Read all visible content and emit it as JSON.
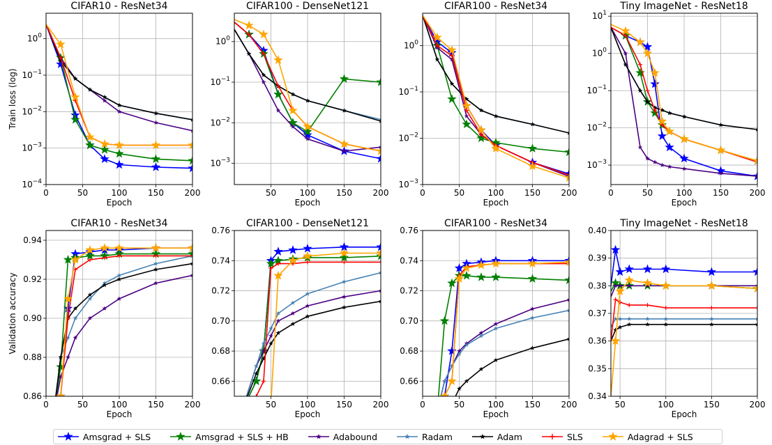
{
  "legend": [
    {
      "name": "Amsgrad + SLS",
      "color": "#0000ff",
      "marker": "star"
    },
    {
      "name": "Amsgrad +  SLS + HB",
      "color": "#008000",
      "marker": "star"
    },
    {
      "name": "Adabound",
      "color": "#4b0082",
      "marker": "star-small"
    },
    {
      "name": "Radam",
      "color": "#4682b4",
      "marker": "star-small"
    },
    {
      "name": "Adam",
      "color": "#000000",
      "marker": "star-small"
    },
    {
      "name": "SLS",
      "color": "#ff0000",
      "marker": "plus"
    },
    {
      "name": "Adagrad + SLS",
      "color": "#ffa500",
      "marker": "star"
    }
  ],
  "chart_data": [
    {
      "type": "line",
      "title": "CIFAR10 - ResNet34",
      "xlabel": "Epoch",
      "ylabel": "Train loss (log)",
      "yscale": "log",
      "xlim": [
        0,
        200
      ],
      "ylim": [
        0.0001,
        5
      ],
      "xticks": [
        "0",
        "50",
        "100",
        "150",
        "200"
      ],
      "yticks": [
        "10^0",
        "10^-1",
        "10^-2",
        "10^-3",
        "10^-4"
      ],
      "grid": true,
      "x": [
        0,
        20,
        40,
        60,
        80,
        100,
        150,
        200
      ],
      "series": [
        {
          "name": "Amsgrad + SLS",
          "values": [
            2.5,
            0.2,
            0.008,
            0.0012,
            0.0005,
            0.00035,
            0.0003,
            0.00028
          ]
        },
        {
          "name": "Amsgrad +  SLS + HB",
          "values": [
            2.5,
            0.3,
            0.006,
            0.0012,
            0.0009,
            0.0007,
            0.0005,
            0.00045
          ]
        },
        {
          "name": "Adabound",
          "values": [
            2.5,
            0.3,
            0.08,
            0.04,
            0.02,
            0.01,
            0.005,
            0.003
          ]
        },
        {
          "name": "Radam",
          "values": [
            2.5,
            0.25,
            0.08,
            0.04,
            0.025,
            0.015,
            0.009,
            0.006
          ]
        },
        {
          "name": "Adam",
          "values": [
            2.5,
            0.25,
            0.08,
            0.04,
            0.025,
            0.015,
            0.009,
            0.006
          ]
        },
        {
          "name": "SLS",
          "values": [
            2.5,
            0.3,
            0.02,
            0.002,
            0.0013,
            0.0012,
            0.0012,
            0.0012
          ]
        },
        {
          "name": "Adagrad + SLS",
          "values": [
            2.5,
            0.7,
            0.025,
            0.002,
            0.0013,
            0.0012,
            0.0012,
            0.0012
          ]
        }
      ]
    },
    {
      "type": "line",
      "title": "CIFAR100 - DenseNet121",
      "xlabel": "Epoch",
      "ylabel": "",
      "yscale": "log",
      "xlim": [
        0,
        200
      ],
      "ylim": [
        0.0003,
        5
      ],
      "xticks": [
        "50",
        "100",
        "150",
        "200"
      ],
      "yticks": [
        "10^0",
        "10^-1",
        "10^-2",
        "10^-3"
      ],
      "grid": true,
      "x": [
        0,
        20,
        40,
        60,
        80,
        100,
        150,
        200
      ],
      "series": [
        {
          "name": "Amsgrad + SLS",
          "values": [
            3,
            1.5,
            0.6,
            0.05,
            0.01,
            0.005,
            0.002,
            0.0013
          ]
        },
        {
          "name": "Amsgrad +  SLS + HB",
          "values": [
            3,
            1.5,
            0.5,
            0.05,
            0.01,
            0.006,
            0.12,
            0.1
          ]
        },
        {
          "name": "Adabound",
          "values": [
            2,
            0.5,
            0.1,
            0.02,
            0.008,
            0.004,
            0.002,
            0.0025
          ]
        },
        {
          "name": "Radam",
          "values": [
            2,
            0.5,
            0.15,
            0.08,
            0.05,
            0.035,
            0.02,
            0.012
          ]
        },
        {
          "name": "Adam",
          "values": [
            2,
            0.5,
            0.15,
            0.08,
            0.05,
            0.035,
            0.02,
            0.011
          ]
        },
        {
          "name": "SLS",
          "values": [
            3,
            1.5,
            0.5,
            0.08,
            0.02,
            0.008,
            0.003,
            0.002
          ]
        },
        {
          "name": "Adagrad + SLS",
          "values": [
            3.5,
            2.5,
            1.5,
            0.35,
            0.02,
            0.008,
            0.003,
            0.002
          ]
        }
      ]
    },
    {
      "type": "line",
      "title": "CIFAR100 - ResNet34",
      "xlabel": "Epoch",
      "ylabel": "",
      "yscale": "log",
      "xlim": [
        0,
        200
      ],
      "ylim": [
        0.001,
        5
      ],
      "xticks": [
        "0",
        "50",
        "100",
        "150",
        "200"
      ],
      "yticks": [
        "10^0",
        "10^-1",
        "10^-2",
        "10^-3"
      ],
      "grid": true,
      "x": [
        0,
        20,
        40,
        60,
        80,
        100,
        150,
        200
      ],
      "series": [
        {
          "name": "Amsgrad + SLS",
          "values": [
            4.5,
            1.2,
            0.7,
            0.05,
            0.015,
            0.007,
            0.003,
            0.0017
          ]
        },
        {
          "name": "Amsgrad +  SLS + HB",
          "values": [
            4.5,
            1,
            0.07,
            0.02,
            0.01,
            0.008,
            0.006,
            0.005
          ]
        },
        {
          "name": "Adabound",
          "values": [
            4.5,
            0.9,
            0.5,
            0.03,
            0.012,
            0.007,
            0.003,
            0.0015
          ]
        },
        {
          "name": "Radam",
          "values": [
            4.5,
            0.5,
            0.15,
            0.07,
            0.04,
            0.03,
            0.02,
            0.013
          ]
        },
        {
          "name": "Adam",
          "values": [
            4.5,
            0.5,
            0.15,
            0.07,
            0.04,
            0.03,
            0.02,
            0.013
          ]
        },
        {
          "name": "SLS",
          "values": [
            4.5,
            1,
            0.6,
            0.04,
            0.012,
            0.007,
            0.003,
            0.0016
          ]
        },
        {
          "name": "Adagrad + SLS",
          "values": [
            4.5,
            1.5,
            0.8,
            0.05,
            0.015,
            0.006,
            0.0025,
            0.0014
          ]
        }
      ]
    },
    {
      "type": "line",
      "title": "Tiny ImageNet - ResNet18",
      "xlabel": "Epoch",
      "ylabel": "",
      "yscale": "log",
      "xlim": [
        0,
        200
      ],
      "ylim": [
        0.0003,
        12
      ],
      "xticks": [
        "0",
        "50",
        "100",
        "150",
        "200"
      ],
      "yticks": [
        "10^1",
        "10^0",
        "10^-1",
        "10^-2",
        "10^-3"
      ],
      "grid": true,
      "x": [
        0,
        20,
        40,
        50,
        60,
        70,
        80,
        100,
        150,
        200
      ],
      "series": [
        {
          "name": "Amsgrad + SLS",
          "values": [
            5,
            3,
            2,
            1.5,
            0.15,
            0.006,
            0.003,
            0.0015,
            0.0007,
            0.0005
          ]
        },
        {
          "name": "Amsgrad +  SLS + HB",
          "values": [
            5,
            3,
            0.3,
            0.05,
            0.025,
            0.012,
            0.008,
            0.005,
            0.0025,
            0.0013
          ]
        },
        {
          "name": "Adabound",
          "values": [
            5,
            1,
            0.003,
            0.0015,
            0.0012,
            0.001,
            0.0009,
            0.0008,
            0.0006,
            0.0005
          ]
        },
        {
          "name": "Radam",
          "values": [
            5,
            0.5,
            0.1,
            0.05,
            0.035,
            0.03,
            0.025,
            0.02,
            0.012,
            0.009
          ]
        },
        {
          "name": "Adam",
          "values": [
            5,
            0.5,
            0.1,
            0.05,
            0.035,
            0.03,
            0.025,
            0.02,
            0.012,
            0.009
          ]
        },
        {
          "name": "SLS",
          "values": [
            5,
            3,
            0.5,
            0.1,
            0.03,
            0.012,
            0.008,
            0.005,
            0.0025,
            0.0012
          ]
        },
        {
          "name": "Adagrad + SLS",
          "values": [
            6,
            4,
            2,
            1,
            0.3,
            0.015,
            0.008,
            0.005,
            0.0025,
            0.0013
          ]
        }
      ]
    },
    {
      "type": "line",
      "title": "CIFAR10 - ResNet34",
      "xlabel": "Epoch",
      "ylabel": "Validation accuracy",
      "yscale": "linear",
      "xlim": [
        0,
        200
      ],
      "ylim": [
        0.86,
        0.945
      ],
      "xticks": [
        "0",
        "50",
        "100",
        "150",
        "200"
      ],
      "yticks": [
        "0.86",
        "0.88",
        "0.90",
        "0.92",
        "0.94"
      ],
      "grid": true,
      "x": [
        10,
        20,
        30,
        40,
        60,
        80,
        100,
        150,
        200
      ],
      "series": [
        {
          "name": "Amsgrad + SLS",
          "values": [
            0.84,
            0.86,
            0.905,
            0.933,
            0.934,
            0.935,
            0.935,
            0.936,
            0.936
          ]
        },
        {
          "name": "Amsgrad +  SLS + HB",
          "values": [
            0.85,
            0.875,
            0.93,
            0.931,
            0.932,
            0.932,
            0.933,
            0.933,
            0.933
          ]
        },
        {
          "name": "Adabound",
          "values": [
            0.85,
            0.87,
            0.88,
            0.89,
            0.9,
            0.905,
            0.91,
            0.918,
            0.922
          ]
        },
        {
          "name": "Radam",
          "values": [
            0.85,
            0.88,
            0.89,
            0.9,
            0.91,
            0.918,
            0.922,
            0.928,
            0.932
          ]
        },
        {
          "name": "Adam",
          "values": [
            0.85,
            0.88,
            0.9,
            0.905,
            0.912,
            0.917,
            0.92,
            0.925,
            0.928
          ]
        },
        {
          "name": "SLS",
          "values": [
            0.84,
            0.86,
            0.9,
            0.925,
            0.93,
            0.931,
            0.932,
            0.932,
            0.932
          ]
        },
        {
          "name": "Adagrad + SLS",
          "values": [
            0.84,
            0.86,
            0.91,
            0.93,
            0.935,
            0.936,
            0.936,
            0.936,
            0.936
          ]
        }
      ]
    },
    {
      "type": "line",
      "title": "CIFAR100 - DenseNet121",
      "xlabel": "Epoch",
      "ylabel": "",
      "yscale": "linear",
      "xlim": [
        0,
        200
      ],
      "ylim": [
        0.65,
        0.76
      ],
      "xticks": [
        "50",
        "100",
        "150",
        "200"
      ],
      "yticks": [
        "0.66",
        "0.68",
        "0.70",
        "0.72",
        "0.74",
        "0.76"
      ],
      "grid": true,
      "x": [
        10,
        30,
        40,
        50,
        60,
        80,
        100,
        150,
        200
      ],
      "series": [
        {
          "name": "Amsgrad + SLS",
          "values": [
            0.64,
            0.66,
            0.68,
            0.74,
            0.746,
            0.747,
            0.748,
            0.749,
            0.749
          ]
        },
        {
          "name": "Amsgrad +  SLS + HB",
          "values": [
            0.64,
            0.66,
            0.68,
            0.738,
            0.74,
            0.741,
            0.742,
            0.742,
            0.743
          ]
        },
        {
          "name": "Adabound",
          "values": [
            0.64,
            0.67,
            0.68,
            0.69,
            0.7,
            0.705,
            0.71,
            0.716,
            0.72
          ]
        },
        {
          "name": "Radam",
          "values": [
            0.64,
            0.67,
            0.685,
            0.695,
            0.705,
            0.712,
            0.718,
            0.726,
            0.732
          ]
        },
        {
          "name": "Adam",
          "values": [
            0.64,
            0.665,
            0.675,
            0.685,
            0.692,
            0.698,
            0.703,
            0.709,
            0.713
          ]
        },
        {
          "name": "SLS",
          "values": [
            0.64,
            0.65,
            0.66,
            0.735,
            0.738,
            0.738,
            0.739,
            0.739,
            0.739
          ]
        },
        {
          "name": "Adagrad + SLS",
          "values": [
            0.64,
            0.64,
            0.64,
            0.645,
            0.73,
            0.74,
            0.743,
            0.745,
            0.745
          ]
        }
      ]
    },
    {
      "type": "line",
      "title": "CIFAR100 - ResNet34",
      "xlabel": "Epoch",
      "ylabel": "",
      "yscale": "linear",
      "xlim": [
        0,
        200
      ],
      "ylim": [
        0.65,
        0.76
      ],
      "xticks": [
        "0",
        "50",
        "100",
        "150",
        "200"
      ],
      "yticks": [
        "0.66",
        "0.68",
        "0.70",
        "0.72",
        "0.74",
        "0.76"
      ],
      "grid": true,
      "x": [
        20,
        30,
        40,
        50,
        60,
        80,
        100,
        150,
        200
      ],
      "series": [
        {
          "name": "Amsgrad + SLS",
          "values": [
            0.64,
            0.65,
            0.68,
            0.735,
            0.738,
            0.739,
            0.74,
            0.74,
            0.74
          ]
        },
        {
          "name": "Amsgrad +  SLS + HB",
          "values": [
            0.64,
            0.7,
            0.725,
            0.73,
            0.73,
            0.729,
            0.729,
            0.728,
            0.727
          ]
        },
        {
          "name": "Adabound",
          "values": [
            0.64,
            0.66,
            0.67,
            0.68,
            0.685,
            0.692,
            0.698,
            0.708,
            0.714
          ]
        },
        {
          "name": "Radam",
          "values": [
            0.64,
            0.66,
            0.67,
            0.678,
            0.684,
            0.69,
            0.695,
            0.702,
            0.707
          ]
        },
        {
          "name": "Adam",
          "values": [
            0.64,
            0.64,
            0.645,
            0.655,
            0.66,
            0.668,
            0.674,
            0.682,
            0.688
          ]
        },
        {
          "name": "SLS",
          "values": [
            0.64,
            0.65,
            0.66,
            0.73,
            0.736,
            0.737,
            0.738,
            0.738,
            0.738
          ]
        },
        {
          "name": "Adagrad + SLS",
          "values": [
            0.64,
            0.65,
            0.66,
            0.728,
            0.735,
            0.737,
            0.738,
            0.738,
            0.739
          ]
        }
      ]
    },
    {
      "type": "line",
      "title": "Tiny ImageNet - ResNet18",
      "xlabel": "Epoch",
      "ylabel": "",
      "yscale": "linear",
      "xlim": [
        40,
        200
      ],
      "ylim": [
        0.34,
        0.4
      ],
      "xticks": [
        "50",
        "100",
        "150",
        "200"
      ],
      "yticks": [
        "0.34",
        "0.35",
        "0.36",
        "0.37",
        "0.38",
        "0.39",
        "0.40"
      ],
      "grid": true,
      "x": [
        40,
        45,
        50,
        60,
        80,
        100,
        150,
        200
      ],
      "series": [
        {
          "name": "Amsgrad + SLS",
          "values": [
            0.38,
            0.393,
            0.385,
            0.386,
            0.386,
            0.386,
            0.385,
            0.385
          ]
        },
        {
          "name": "Amsgrad +  SLS + HB",
          "values": [
            0.378,
            0.381,
            0.38,
            0.38,
            0.38,
            0.38,
            0.38,
            0.379
          ]
        },
        {
          "name": "Adabound",
          "values": [
            0.376,
            0.38,
            0.38,
            0.38,
            0.38,
            0.38,
            0.38,
            0.38
          ]
        },
        {
          "name": "Radam",
          "values": [
            0.365,
            0.368,
            0.368,
            0.368,
            0.368,
            0.368,
            0.368,
            0.368
          ]
        },
        {
          "name": "Adam",
          "values": [
            0.36,
            0.364,
            0.365,
            0.366,
            0.366,
            0.366,
            0.366,
            0.366
          ]
        },
        {
          "name": "SLS",
          "values": [
            0.36,
            0.375,
            0.374,
            0.373,
            0.373,
            0.372,
            0.372,
            0.372
          ]
        },
        {
          "name": "Adagrad + SLS",
          "values": [
            0.34,
            0.36,
            0.378,
            0.382,
            0.381,
            0.38,
            0.38,
            0.379
          ]
        }
      ]
    }
  ]
}
